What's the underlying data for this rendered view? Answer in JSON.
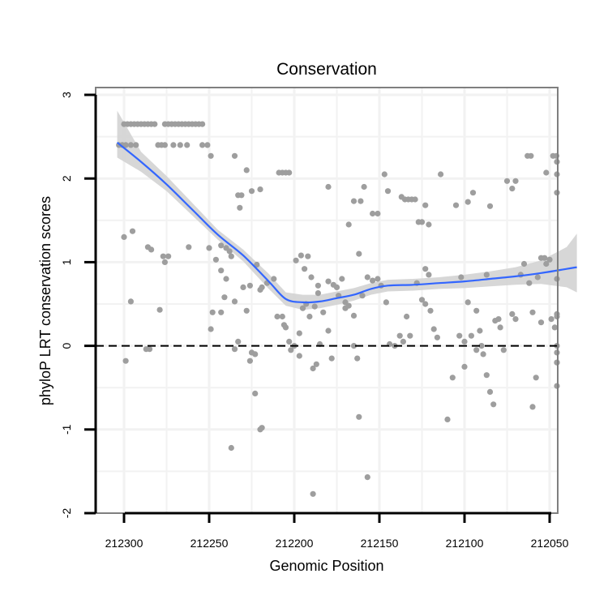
{
  "chart_data": {
    "type": "scatter",
    "title": "Conservation",
    "xlabel": "Genomic Position",
    "ylabel": "phyloP LRT conservation scores",
    "x_reversed": true,
    "xlim": [
      212315,
      212045
    ],
    "ylim": [
      -2,
      3
    ],
    "x_ticks": [
      212300,
      212250,
      212200,
      212150,
      212100,
      212050
    ],
    "x_tick_labels": [
      "212300",
      "212250",
      "212200",
      "212150",
      "212100",
      "212050"
    ],
    "y_ticks": [
      -2,
      -1,
      0,
      1,
      2,
      3
    ],
    "y_tick_labels": [
      "-2",
      "-1",
      "0",
      "1",
      "2",
      "3"
    ],
    "grid": true,
    "reference_line": {
      "y": 0,
      "style": "dashed"
    },
    "colors": {
      "points": "#9e9e9e",
      "smooth_line": "#3366ff",
      "confidence_band": "#d3d3d3",
      "panel_border": "#7f7f7f",
      "grid": "#f2f2f2"
    },
    "series": [
      {
        "type": "points",
        "points": [
          [
            212303,
            2.4
          ],
          [
            212301,
            2.4
          ],
          [
            212299,
            2.4
          ],
          [
            212296,
            2.4
          ],
          [
            212293,
            2.4
          ],
          [
            212280,
            2.4
          ],
          [
            212278,
            2.4
          ],
          [
            212276,
            2.4
          ],
          [
            212271,
            2.4
          ],
          [
            212267,
            2.4
          ],
          [
            212263,
            2.4
          ],
          [
            212254,
            2.4
          ],
          [
            212251,
            2.4
          ],
          [
            212300,
            2.65
          ],
          [
            212298,
            2.65
          ],
          [
            212296,
            2.65
          ],
          [
            212294,
            2.65
          ],
          [
            212292,
            2.65
          ],
          [
            212290,
            2.65
          ],
          [
            212288,
            2.65
          ],
          [
            212286,
            2.65
          ],
          [
            212284,
            2.65
          ],
          [
            212282,
            2.65
          ],
          [
            212276,
            2.65
          ],
          [
            212274,
            2.65
          ],
          [
            212272,
            2.65
          ],
          [
            212270,
            2.65
          ],
          [
            212268,
            2.65
          ],
          [
            212266,
            2.65
          ],
          [
            212264,
            2.65
          ],
          [
            212262,
            2.65
          ],
          [
            212260,
            2.65
          ],
          [
            212258,
            2.65
          ],
          [
            212256,
            2.65
          ],
          [
            212254,
            2.65
          ],
          [
            212249,
            2.27
          ],
          [
            212235,
            2.27
          ],
          [
            212228,
            2.1
          ],
          [
            212225,
            1.85
          ],
          [
            212220,
            1.87
          ],
          [
            212233,
            1.8
          ],
          [
            212231,
            1.8
          ],
          [
            212232,
            1.65
          ],
          [
            212209,
            2.07
          ],
          [
            212207,
            2.07
          ],
          [
            212205,
            2.07
          ],
          [
            212203,
            2.07
          ],
          [
            212300,
            1.3
          ],
          [
            212295,
            1.37
          ],
          [
            212286,
            1.18
          ],
          [
            212284,
            1.15
          ],
          [
            212277,
            1.07
          ],
          [
            212274,
            1.07
          ],
          [
            212262,
            1.18
          ],
          [
            212250,
            1.17
          ],
          [
            212243,
            1.2
          ],
          [
            212240,
            1.17
          ],
          [
            212238,
            1.13
          ],
          [
            212237,
            1.07
          ],
          [
            212246,
            1.03
          ],
          [
            212243,
            0.9
          ],
          [
            212222,
            0.97
          ],
          [
            212240,
            0.8
          ],
          [
            212230,
            0.7
          ],
          [
            212226,
            0.72
          ],
          [
            212219,
            0.7
          ],
          [
            212216,
            0.75
          ],
          [
            212220,
            0.67
          ],
          [
            212296,
            0.53
          ],
          [
            212279,
            0.43
          ],
          [
            212276,
            1.0
          ],
          [
            212241,
            0.58
          ],
          [
            212235,
            0.53
          ],
          [
            212228,
            0.42
          ],
          [
            212248,
            0.4
          ],
          [
            212243,
            0.4
          ],
          [
            212249,
            0.2
          ],
          [
            212233,
            0.05
          ],
          [
            212299,
            -0.18
          ],
          [
            212287,
            -0.04
          ],
          [
            212285,
            -0.04
          ],
          [
            212235,
            -0.04
          ],
          [
            212226,
            -0.18
          ],
          [
            212225,
            -0.08
          ],
          [
            212223,
            -0.1
          ],
          [
            212223,
            -0.57
          ],
          [
            212220,
            -1.0
          ],
          [
            212219,
            -0.98
          ],
          [
            212237,
            -1.22
          ],
          [
            212212,
            0.8
          ],
          [
            212210,
            0.35
          ],
          [
            212207,
            0.35
          ],
          [
            212206,
            0.25
          ],
          [
            212205,
            0.22
          ],
          [
            212203,
            0.05
          ],
          [
            212200,
            0.0
          ],
          [
            212197,
            0.15
          ],
          [
            212195,
            0.45
          ],
          [
            212193,
            0.5
          ],
          [
            212191,
            0.35
          ],
          [
            212188,
            0.47
          ],
          [
            212186,
            0.63
          ],
          [
            212183,
            0.4
          ],
          [
            212180,
            0.18
          ],
          [
            212199,
            1.02
          ],
          [
            212196,
            1.08
          ],
          [
            212194,
            0.92
          ],
          [
            212192,
            1.07
          ],
          [
            212190,
            0.82
          ],
          [
            212186,
            0.72
          ],
          [
            212180,
            0.77
          ],
          [
            212177,
            0.73
          ],
          [
            212175,
            0.7
          ],
          [
            212172,
            0.8
          ],
          [
            212170,
            0.52
          ],
          [
            212168,
            0.48
          ],
          [
            212165,
            0.36
          ],
          [
            212202,
            -0.05
          ],
          [
            212197,
            -0.12
          ],
          [
            212189,
            -0.27
          ],
          [
            212187,
            -0.22
          ],
          [
            212185,
            0.02
          ],
          [
            212178,
            -0.15
          ],
          [
            212174,
            0.6
          ],
          [
            212170,
            0.45
          ],
          [
            212165,
            0.0
          ],
          [
            212163,
            -0.15
          ],
          [
            212162,
            -0.85
          ],
          [
            212157,
            -1.57
          ],
          [
            212189,
            -1.77
          ],
          [
            212162,
            1.1
          ],
          [
            212160,
            0.6
          ],
          [
            212157,
            0.82
          ],
          [
            212154,
            0.78
          ],
          [
            212151,
            0.8
          ],
          [
            212149,
            0.72
          ],
          [
            212146,
            0.52
          ],
          [
            212144,
            0.02
          ],
          [
            212141,
            0.0
          ],
          [
            212138,
            0.12
          ],
          [
            212136,
            0.05
          ],
          [
            212180,
            1.9
          ],
          [
            212168,
            1.45
          ],
          [
            212165,
            1.73
          ],
          [
            212161,
            1.73
          ],
          [
            212159,
            1.9
          ],
          [
            212154,
            1.58
          ],
          [
            212151,
            1.58
          ],
          [
            212147,
            2.05
          ],
          [
            212145,
            1.85
          ],
          [
            212137,
            1.78
          ],
          [
            212135,
            1.75
          ],
          [
            212133,
            1.75
          ],
          [
            212131,
            1.75
          ],
          [
            212129,
            1.75
          ],
          [
            212127,
            1.48
          ],
          [
            212125,
            1.48
          ],
          [
            212123,
            1.68
          ],
          [
            212121,
            1.45
          ],
          [
            212125,
            0.55
          ],
          [
            212123,
            0.5
          ],
          [
            212120,
            0.42
          ],
          [
            212118,
            0.2
          ],
          [
            212116,
            0.1
          ],
          [
            212134,
            0.35
          ],
          [
            212132,
            0.12
          ],
          [
            212128,
            0.75
          ],
          [
            212123,
            0.92
          ],
          [
            212121,
            0.85
          ],
          [
            212114,
            2.05
          ],
          [
            212110,
            -0.88
          ],
          [
            212107,
            -0.38
          ],
          [
            212105,
            1.68
          ],
          [
            212102,
            0.82
          ],
          [
            212100,
            -0.25
          ],
          [
            212098,
            0.52
          ],
          [
            212096,
            0.12
          ],
          [
            212093,
            -0.05
          ],
          [
            212091,
            0.18
          ],
          [
            212089,
            -0.1
          ],
          [
            212087,
            -0.35
          ],
          [
            212085,
            -0.55
          ],
          [
            212083,
            -0.7
          ],
          [
            212103,
            0.12
          ],
          [
            212100,
            0.05
          ],
          [
            212098,
            1.72
          ],
          [
            212095,
            1.83
          ],
          [
            212093,
            0.42
          ],
          [
            212090,
            0.0
          ],
          [
            212087,
            0.85
          ],
          [
            212085,
            1.67
          ],
          [
            212082,
            0.3
          ],
          [
            212080,
            0.32
          ],
          [
            212079,
            0.22
          ],
          [
            212077,
            -0.05
          ],
          [
            212075,
            1.97
          ],
          [
            212072,
            0.38
          ],
          [
            212070,
            0.32
          ],
          [
            212067,
            0.85
          ],
          [
            212065,
            0.98
          ],
          [
            212062,
            0.75
          ],
          [
            212060,
            0.4
          ],
          [
            212058,
            -0.38
          ],
          [
            212057,
            0.82
          ],
          [
            212055,
            1.05
          ],
          [
            212053,
            1.05
          ],
          [
            212050,
            1.03
          ],
          [
            212072,
            1.88
          ],
          [
            212070,
            1.97
          ],
          [
            212063,
            2.27
          ],
          [
            212061,
            2.27
          ],
          [
            212052,
            2.07
          ],
          [
            212048,
            2.27
          ],
          [
            212046,
            2.27
          ],
          [
            212044,
            2.05
          ],
          [
            212042,
            2.2
          ],
          [
            212060,
            -0.73
          ],
          [
            212055,
            0.28
          ],
          [
            212052,
            0.98
          ],
          [
            212049,
            0.32
          ],
          [
            212047,
            0.22
          ],
          [
            212045,
            0.35
          ],
          [
            212042,
            0.0
          ],
          [
            212041,
            -0.48
          ],
          [
            212040,
            -0.2
          ],
          [
            212038,
            -0.2
          ],
          [
            212037,
            0.38
          ],
          [
            212036,
            -0.08
          ],
          [
            212035,
            0.8
          ],
          [
            212033,
            1.83
          ]
        ]
      },
      {
        "type": "smooth",
        "x": [
          212304,
          212290,
          212275,
          212260,
          212245,
          212230,
          212215,
          212205,
          212195,
          212185,
          212175,
          212165,
          212155,
          212145,
          212130,
          212115,
          212100,
          212085,
          212070,
          212055,
          212040,
          212034
        ],
        "y": [
          2.43,
          2.2,
          1.93,
          1.63,
          1.33,
          1.08,
          0.77,
          0.56,
          0.52,
          0.53,
          0.57,
          0.61,
          0.68,
          0.72,
          0.73,
          0.75,
          0.77,
          0.8,
          0.83,
          0.87,
          0.92,
          0.94
        ],
        "ci_low": [
          2.25,
          2.08,
          1.85,
          1.56,
          1.27,
          1.01,
          0.68,
          0.48,
          0.43,
          0.45,
          0.49,
          0.54,
          0.61,
          0.65,
          0.66,
          0.68,
          0.69,
          0.71,
          0.73,
          0.74,
          0.7,
          0.64
        ],
        "ci_high": [
          2.81,
          2.32,
          2.03,
          1.71,
          1.39,
          1.15,
          0.86,
          0.64,
          0.61,
          0.61,
          0.65,
          0.69,
          0.75,
          0.79,
          0.8,
          0.82,
          0.85,
          0.89,
          0.94,
          1.02,
          1.18,
          1.34
        ]
      }
    ]
  }
}
